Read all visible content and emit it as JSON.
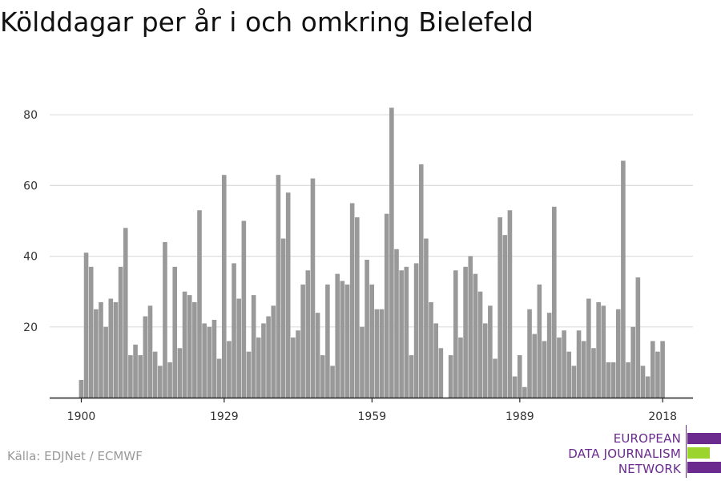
{
  "title": "Kölddagar per år i och omkring Bielefeld",
  "source": "Källa: EDJNet / ECMWF",
  "logo": {
    "lines": [
      "EUROPEAN",
      "DATA JOURNALISM",
      "NETWORK"
    ]
  },
  "colors": {
    "bar": "#999999",
    "grid": "#dddddd",
    "axis": "#222222",
    "brand_purple": "#6a2a8e",
    "brand_green": "#9bd42c"
  },
  "chart_data": {
    "type": "bar",
    "title": "Kölddagar per år i och omkring Bielefeld",
    "xlabel": "",
    "ylabel": "",
    "x_start": 1899,
    "x_end": 2021,
    "x_ticks": [
      1900,
      1929,
      1959,
      1989,
      2018
    ],
    "y_ticks": [
      20,
      40,
      60,
      80
    ],
    "ylim": [
      0,
      87
    ],
    "grid": true,
    "values": [
      5,
      41,
      37,
      25,
      27,
      20,
      28,
      27,
      37,
      48,
      12,
      15,
      12,
      23,
      26,
      13,
      9,
      44,
      10,
      37,
      14,
      30,
      29,
      27,
      53,
      21,
      20,
      22,
      11,
      63,
      16,
      38,
      28,
      50,
      13,
      29,
      17,
      21,
      23,
      26,
      63,
      45,
      58,
      17,
      19,
      32,
      36,
      62,
      24,
      12,
      32,
      9,
      35,
      33,
      32,
      55,
      51,
      20,
      39,
      32,
      25,
      25,
      52,
      82,
      42,
      36,
      37,
      12,
      38,
      66,
      45,
      27,
      21,
      14,
      0,
      12,
      36,
      17,
      37,
      40,
      35,
      30,
      21,
      26,
      11,
      51,
      46,
      53,
      6,
      12,
      3,
      25,
      18,
      32,
      16,
      24,
      54,
      17,
      19,
      13,
      9,
      19,
      16,
      28,
      14,
      27,
      26,
      10,
      10,
      25,
      67,
      10,
      20,
      34,
      9,
      6,
      16,
      13,
      16
    ]
  }
}
